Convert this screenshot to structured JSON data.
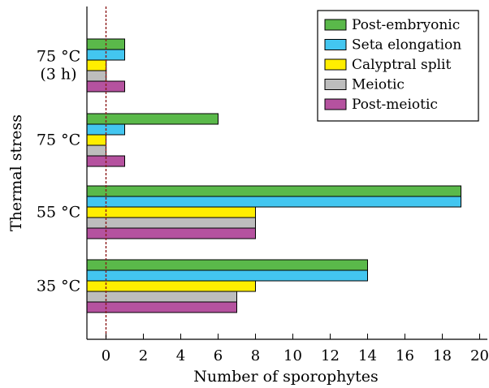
{
  "chart_data": {
    "type": "bar",
    "orientation": "horizontal",
    "categories": [
      "75 °C\n(3 h)",
      "75 °C",
      "55 °C",
      "35 °C"
    ],
    "series": [
      {
        "name": "Post-embryonic",
        "values": [
          1,
          6,
          19,
          14
        ],
        "color": "#5ab94a"
      },
      {
        "name": "Seta elongation",
        "values": [
          1,
          1,
          19,
          14
        ],
        "color": "#43c6f0"
      },
      {
        "name": "Calyptral split",
        "values": [
          0.01,
          0,
          8,
          8
        ],
        "color": "#ffee00"
      },
      {
        "name": "Meiotic",
        "values": [
          0.01,
          0,
          8,
          7
        ],
        "color": "#bdbdbd"
      },
      {
        "name": "Post-meiotic",
        "values": [
          1,
          1,
          8,
          7
        ],
        "color": "#b5529f"
      }
    ],
    "xlabel": "Number of sporophytes",
    "ylabel": "Thermal stress",
    "xlim": [
      -1,
      20
    ],
    "xticks": [
      0,
      2,
      4,
      6,
      8,
      10,
      12,
      14,
      16,
      18,
      20
    ],
    "reference_line": {
      "x": 0,
      "style": "dashed",
      "color": "#8b1a1a"
    },
    "legend_position": "top-right",
    "grid": false
  }
}
